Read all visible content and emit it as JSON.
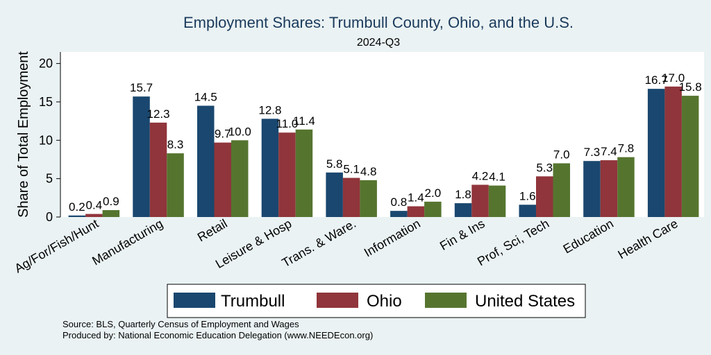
{
  "chart_data": {
    "type": "bar",
    "title": "Employment Shares: Trumbull County, Ohio, and the U.S.",
    "subtitle": "2024-Q3",
    "xlabel": "",
    "ylabel": "Share of Total Employment",
    "ylim": [
      0,
      21.5
    ],
    "yticks": [
      0,
      5,
      10,
      15,
      20
    ],
    "grid": false,
    "legend_position": "bottom",
    "categories": [
      "Ag/For/Fish/Hunt",
      "Manufacturing",
      "Retail",
      "Leisure & Hosp",
      "Trans. & Ware.",
      "Information",
      "Fin & Ins",
      "Prof, Sci, Tech",
      "Education",
      "Health Care"
    ],
    "series": [
      {
        "name": "Trumbull",
        "color": "#1a476f",
        "values": [
          0.2,
          15.7,
          14.5,
          12.8,
          5.8,
          0.8,
          1.8,
          1.6,
          7.3,
          16.7
        ]
      },
      {
        "name": "Ohio",
        "color": "#90353b",
        "values": [
          0.4,
          12.3,
          9.7,
          11.0,
          5.1,
          1.4,
          4.2,
          5.3,
          7.4,
          17.0
        ]
      },
      {
        "name": "United States",
        "color": "#55752f",
        "values": [
          0.9,
          8.3,
          10.0,
          11.4,
          4.8,
          2.0,
          4.1,
          7.0,
          7.8,
          15.8
        ]
      }
    ]
  },
  "source": {
    "line1": "Source: BLS, Quarterly Census of Employment and Wages",
    "line2": "Produced by: National Economic Education Delegation (www.NEEDEcon.org)"
  }
}
